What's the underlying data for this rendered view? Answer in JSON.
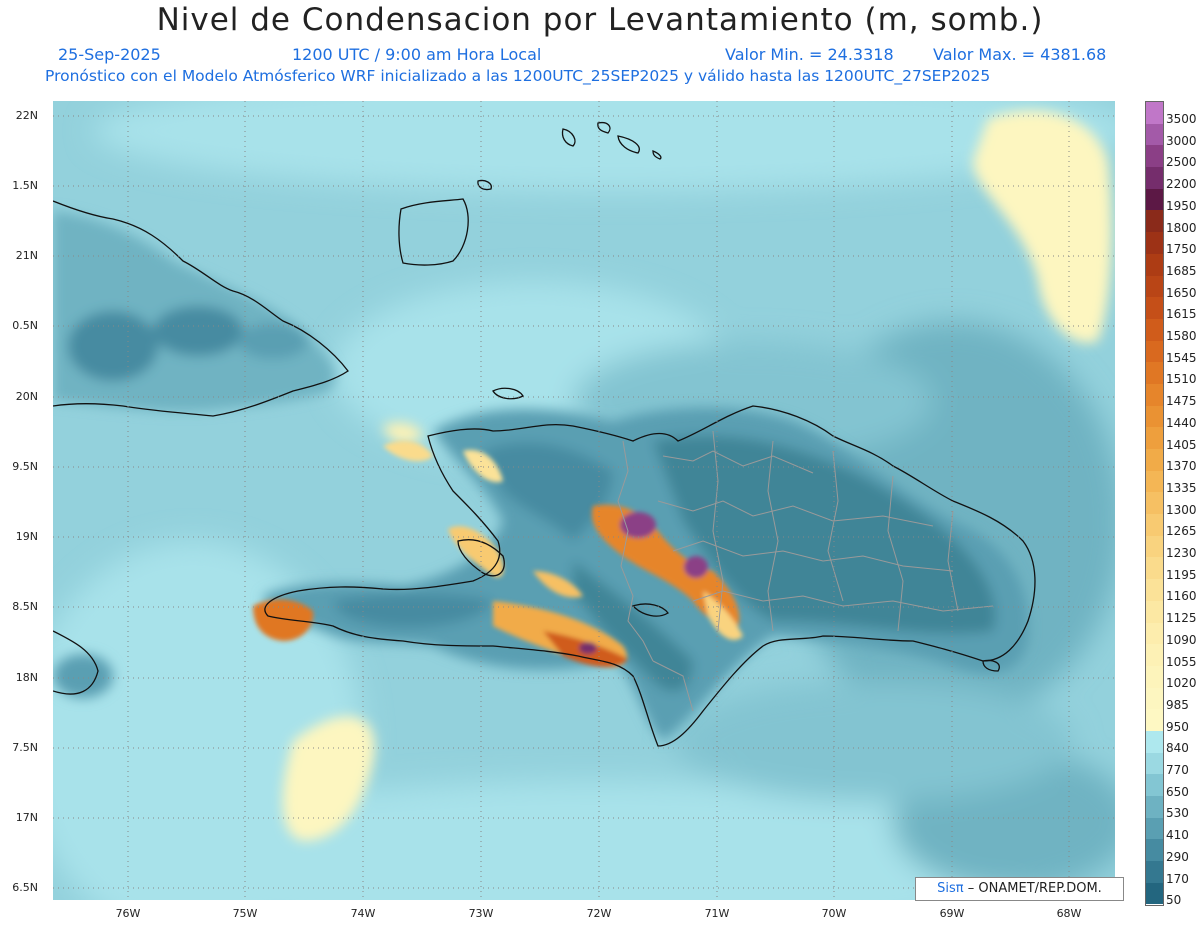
{
  "title": "Nivel de Condensacion por Levantamiento (m, somb.)",
  "date": "25-Sep-2025",
  "time": "1200 UTC / 9:00 am Hora Local",
  "min_label": "Valor Min. = 24.3318",
  "max_label": "Valor Max. = 4381.68",
  "subtitle": "Pronóstico con el Modelo Atmósferico WRF inicializado a las 1200UTC_25SEP2025 y válido hasta las  1200UTC_27SEP2025",
  "lat_labels": [
    "22N",
    "1.5N",
    "21N",
    "0.5N",
    "20N",
    "9.5N",
    "19N",
    "8.5N",
    "18N",
    "7.5N",
    "17N",
    "6.5N"
  ],
  "lon_labels": [
    "76W",
    "75W",
    "74W",
    "73W",
    "72W",
    "71W",
    "70W",
    "69W",
    "68W"
  ],
  "colorbar": {
    "labels": [
      "3500",
      "3000",
      "2500",
      "2200",
      "1950",
      "1800",
      "1750",
      "1685",
      "1650",
      "1615",
      "1580",
      "1545",
      "1510",
      "1475",
      "1440",
      "1405",
      "1370",
      "1335",
      "1300",
      "1265",
      "1230",
      "1195",
      "1160",
      "1125",
      "1090",
      "1055",
      "1020",
      "985",
      "950",
      "840",
      "770",
      "650",
      "530",
      "410",
      "290",
      "170",
      "50"
    ],
    "colors": [
      "#c077c8",
      "#a35aa8",
      "#8b3f86",
      "#752d6c",
      "#5c1845",
      "#8a2a1a",
      "#9d3216",
      "#ad3c14",
      "#b94516",
      "#c54f18",
      "#d05c1b",
      "#d9691f",
      "#e07724",
      "#e6852b",
      "#ea9233",
      "#ee9f3d",
      "#f1ab48",
      "#f4b655",
      "#f6c063",
      "#f8ca71",
      "#f9d37f",
      "#fadb8c",
      "#fbe298",
      "#fce8a3",
      "#fdedad",
      "#fdf1b5",
      "#fdf4bb",
      "#fdf6c0",
      "#fef8c3",
      "#aee8ee",
      "#9bd9e2",
      "#83c6d3",
      "#6eb2c2",
      "#5a9fb2",
      "#468ba1",
      "#347890",
      "#23667f"
    ]
  },
  "credit": {
    "logo": "Sisπ",
    "text": "– ONAMET/REP.DOM."
  }
}
